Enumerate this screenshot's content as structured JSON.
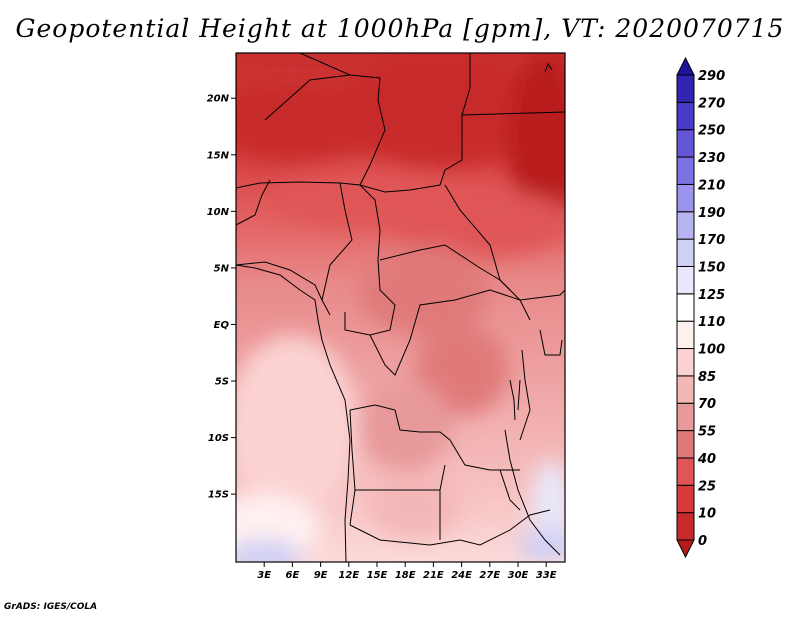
{
  "title": "Geopotential Height at 1000hPa [gpm], VT: 2020070715",
  "credit": "GrADS: IGES/COLA",
  "map": {
    "lon_range": [
      0,
      35
    ],
    "lat_range": [
      -21,
      24
    ],
    "lat_ticks": [
      {
        "value": 20,
        "label": "20N"
      },
      {
        "value": 15,
        "label": "15N"
      },
      {
        "value": 10,
        "label": "10N"
      },
      {
        "value": 5,
        "label": "5N"
      },
      {
        "value": 0,
        "label": "EQ"
      },
      {
        "value": -5,
        "label": "5S"
      },
      {
        "value": -10,
        "label": "10S"
      },
      {
        "value": -15,
        "label": "15S"
      }
    ],
    "lon_ticks": [
      {
        "value": 3,
        "label": "3E"
      },
      {
        "value": 6,
        "label": "6E"
      },
      {
        "value": 9,
        "label": "9E"
      },
      {
        "value": 12,
        "label": "12E"
      },
      {
        "value": 15,
        "label": "15E"
      },
      {
        "value": 18,
        "label": "18E"
      },
      {
        "value": 21,
        "label": "21E"
      },
      {
        "value": 24,
        "label": "24E"
      },
      {
        "value": 27,
        "label": "27E"
      },
      {
        "value": 30,
        "label": "30E"
      },
      {
        "value": 33,
        "label": "33E"
      }
    ]
  },
  "colorbar": {
    "levels": [
      "0",
      "10",
      "25",
      "40",
      "55",
      "70",
      "85",
      "100",
      "110",
      "125",
      "150",
      "170",
      "190",
      "210",
      "230",
      "250",
      "270",
      "290"
    ],
    "colors": [
      "#b81a1a",
      "#c72a2a",
      "#d63a3a",
      "#e05656",
      "#e07a7a",
      "#e89a9a",
      "#f4b7b7",
      "#fbd2d2",
      "#fff0f0",
      "#ffffff",
      "#e8e8fa",
      "#d0d0f6",
      "#b8b4f2",
      "#9c94ec",
      "#7e72e2",
      "#6456d6",
      "#4a3ac6",
      "#3224b0",
      "#1c149a"
    ]
  },
  "field_blobs": [
    {
      "lon": 6,
      "lat": 18,
      "rx": 10,
      "ry": 3.5,
      "color": "#c72a2a"
    },
    {
      "lon": 22,
      "lat": 19,
      "rx": 12,
      "ry": 5,
      "color": "#c72a2a"
    },
    {
      "lon": 33,
      "lat": 16,
      "rx": 4,
      "ry": 8,
      "color": "#b81a1a"
    },
    {
      "lon": 14,
      "lat": 11,
      "rx": 10,
      "ry": 2.5,
      "color": "#e05656"
    },
    {
      "lon": 26,
      "lat": 9,
      "rx": 10,
      "ry": 3,
      "color": "#e05656"
    },
    {
      "lon": 20,
      "lat": 3,
      "rx": 7,
      "ry": 4,
      "color": "#e07a7a"
    },
    {
      "lon": 24,
      "lat": -4,
      "rx": 5,
      "ry": 4,
      "color": "#e07a7a"
    },
    {
      "lon": 18,
      "lat": -9,
      "rx": 5,
      "ry": 4,
      "color": "#e89a9a"
    },
    {
      "lon": 19,
      "lat": -16,
      "rx": 5,
      "ry": 3,
      "color": "#f4b7b7"
    },
    {
      "lon": 6,
      "lat": -9,
      "rx": 7,
      "ry": 8,
      "color": "#fbd2d2"
    },
    {
      "lon": 3,
      "lat": -18,
      "rx": 6,
      "ry": 3,
      "color": "#fff0f0"
    },
    {
      "lon": 3,
      "lat": -20.5,
      "rx": 4,
      "ry": 1.5,
      "color": "#d0d0f6"
    },
    {
      "lon": 33.5,
      "lat": -16,
      "rx": 2,
      "ry": 4,
      "color": "#e8e8fa"
    },
    {
      "lon": 33,
      "lat": -19.5,
      "rx": 3,
      "ry": 1.5,
      "color": "#d0d0f6"
    }
  ]
}
